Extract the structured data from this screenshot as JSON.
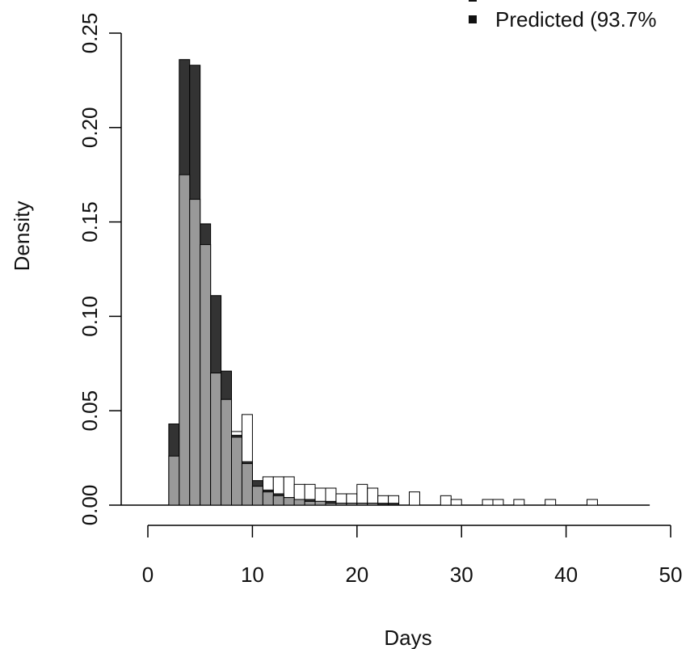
{
  "chart_data": {
    "type": "bar",
    "title": "",
    "xlabel": "Days",
    "ylabel": "Density",
    "xlim": [
      0,
      50
    ],
    "ylim": [
      0,
      0.25
    ],
    "xticks": [
      0,
      10,
      20,
      30,
      40,
      50
    ],
    "yticks": [
      0.0,
      0.05,
      0.1,
      0.15,
      0.2,
      0.25
    ],
    "xtick_labels": [
      "0",
      "10",
      "20",
      "30",
      "40",
      "50"
    ],
    "ytick_labels": [
      "0.00",
      "0.05",
      "0.10",
      "0.15",
      "0.20",
      "0.25"
    ],
    "bin_width": 1,
    "bin_starts": [
      0,
      1,
      2,
      3,
      4,
      5,
      6,
      7,
      8,
      9,
      10,
      11,
      12,
      13,
      14,
      15,
      16,
      17,
      18,
      19,
      20,
      21,
      22,
      23,
      24,
      25,
      26,
      27,
      28,
      29,
      30,
      31,
      32,
      33,
      34,
      35,
      36,
      37,
      38,
      39,
      40,
      41,
      42,
      43,
      44,
      45,
      46,
      47
    ],
    "grid": false,
    "legend_position": "top-right",
    "series": [
      {
        "name": "",
        "color": "#ffffff",
        "values": [
          0,
          0,
          0,
          0,
          0,
          0,
          0,
          0,
          0.039,
          0.048,
          0.011,
          0.015,
          0.015,
          0.015,
          0.011,
          0.011,
          0.009,
          0.009,
          0.006,
          0.006,
          0.011,
          0.009,
          0.005,
          0.005,
          0,
          0.007,
          0,
          0,
          0.005,
          0.003,
          0,
          0,
          0.003,
          0.003,
          0,
          0.003,
          0,
          0,
          0.003,
          0,
          0,
          0,
          0.003,
          0,
          0,
          0,
          0,
          0
        ]
      },
      {
        "name": "Predicted (93.7%",
        "color": "#333333",
        "values": [
          0,
          0,
          0.043,
          0.236,
          0.233,
          0.149,
          0.111,
          0.071,
          0.037,
          0.023,
          0.013,
          0.008,
          0.006,
          0.004,
          0.003,
          0.003,
          0.002,
          0.002,
          0.001,
          0.001,
          0.001,
          0.001,
          0.001,
          0.001,
          0,
          0,
          0,
          0,
          0,
          0,
          0,
          0,
          0,
          0,
          0,
          0,
          0,
          0,
          0,
          0,
          0,
          0,
          0,
          0,
          0,
          0,
          0,
          0
        ]
      },
      {
        "name": "",
        "color": "#999999",
        "values": [
          0,
          0,
          0.026,
          0.175,
          0.162,
          0.138,
          0.07,
          0.056,
          0.036,
          0.022,
          0.01,
          0.007,
          0.005,
          0.004,
          0.003,
          0.002,
          0.002,
          0.001,
          0.001,
          0.001,
          0.001,
          0.001,
          0,
          0,
          0,
          0,
          0,
          0,
          0,
          0,
          0,
          0,
          0,
          0,
          0,
          0,
          0,
          0,
          0,
          0,
          0,
          0,
          0,
          0,
          0,
          0,
          0,
          0
        ]
      }
    ]
  },
  "legend": {
    "entries": [
      {
        "label": "Predicted (93.7%",
        "color": "#111111"
      }
    ]
  }
}
